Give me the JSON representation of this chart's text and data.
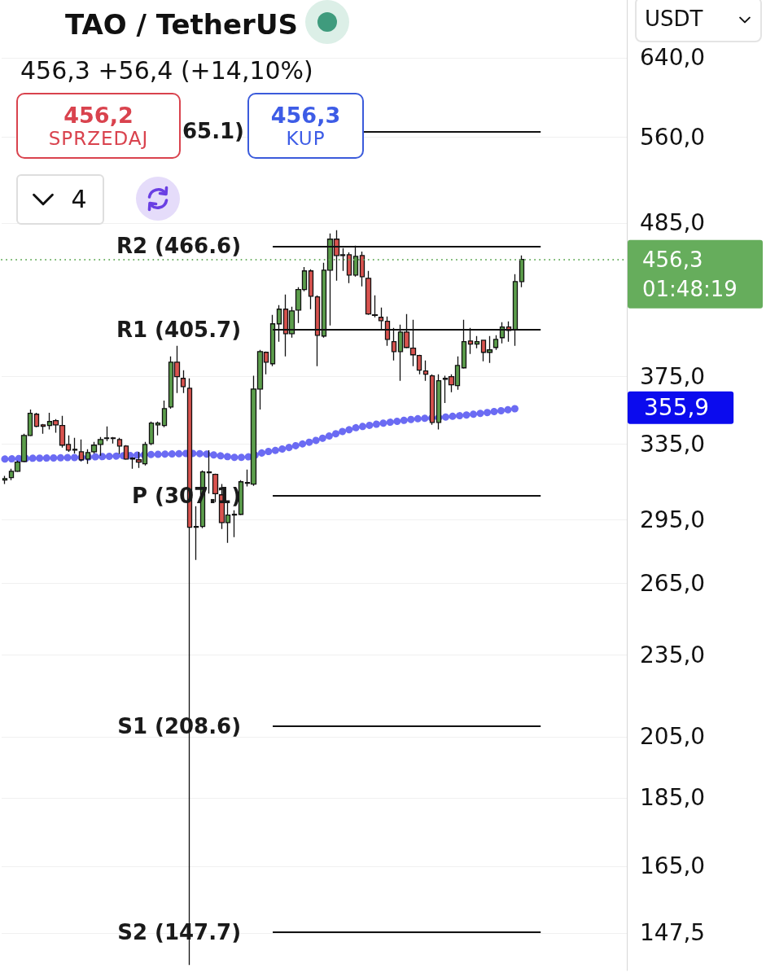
{
  "chart_data": {
    "type": "candlestick",
    "title": "TAO / TetherUS",
    "subtitle": "456,3 +56,4 (+14,10%)",
    "categories": [
      null,
      null,
      null,
      null,
      null,
      null,
      null,
      null,
      null,
      null,
      null,
      null,
      null,
      null,
      null,
      null,
      null,
      null,
      null,
      null,
      null,
      null,
      null,
      null,
      null,
      null,
      null,
      null,
      null,
      null,
      null,
      null,
      null,
      null,
      null,
      null,
      null,
      null,
      null,
      null,
      null,
      null,
      null,
      null,
      null,
      null,
      null,
      null,
      null,
      null,
      null,
      null,
      null,
      null,
      null,
      null,
      null,
      null,
      null,
      null,
      null,
      null,
      null,
      null,
      null,
      null,
      null,
      null,
      null,
      null,
      null,
      null,
      null,
      null,
      null,
      null,
      null,
      null,
      null,
      null,
      null,
      null
    ],
    "ohlc": [
      [
        315.2,
        317.4,
        313.1,
        316.0
      ],
      [
        316.5,
        321.2,
        315.2,
        319.9
      ],
      [
        319.9,
        325.6,
        319.5,
        324.8
      ],
      [
        325.2,
        340.7,
        324.8,
        339.7
      ],
      [
        339.7,
        354.8,
        339.3,
        352.5
      ],
      [
        352.0,
        352.9,
        344.4,
        344.9
      ],
      [
        345.8,
        346.3,
        340.7,
        344.9
      ],
      [
        345.4,
        352.9,
        343.1,
        347.7
      ],
      [
        348.2,
        349.1,
        341.2,
        345.8
      ],
      [
        345.4,
        351.0,
        332.8,
        334.2
      ],
      [
        334.6,
        339.7,
        330.5,
        331.4
      ],
      [
        331.4,
        338.3,
        329.6,
        331.9
      ],
      [
        330.5,
        337.4,
        325.2,
        326.1
      ],
      [
        326.5,
        331.9,
        323.9,
        330.1
      ],
      [
        330.5,
        336.0,
        329.6,
        334.2
      ],
      [
        334.6,
        338.8,
        328.3,
        337.4
      ],
      [
        338.0,
        344.9,
        336.5,
        338.3
      ],
      [
        338.3,
        338.8,
        335.1,
        338.0
      ],
      [
        337.4,
        338.3,
        329.2,
        333.7
      ],
      [
        333.7,
        334.2,
        326.1,
        326.5
      ],
      [
        326.5,
        327.4,
        321.2,
        327.0
      ],
      [
        326.1,
        330.5,
        321.7,
        324.8
      ],
      [
        323.9,
        336.0,
        323.0,
        334.6
      ],
      [
        335.1,
        347.7,
        334.2,
        346.8
      ],
      [
        345.8,
        347.7,
        339.7,
        346.8
      ],
      [
        345.4,
        360.2,
        344.4,
        355.3
      ],
      [
        356.3,
        387.9,
        355.3,
        384.1
      ],
      [
        384.1,
        394.8,
        364.7,
        374.9
      ],
      [
        373.8,
        379.0,
        364.7,
        368.7
      ],
      [
        367.7,
        373.8,
        139.8,
        291.2
      ],
      [
        291.2,
        301.7,
        275.7,
        291.6
      ],
      [
        291.6,
        320.4,
        290.8,
        319.5
      ],
      [
        319.5,
        331.4,
        308.1,
        319.1
      ],
      [
        318.2,
        318.6,
        303.8,
        308.1
      ],
      [
        307.5,
        313.1,
        290.4,
        293.5
      ],
      [
        293.5,
        303.8,
        283.7,
        297.2
      ],
      [
        297.2,
        299.6,
        286.4,
        297.6
      ],
      [
        297.6,
        315.2,
        297.2,
        314.3
      ],
      [
        313.5,
        320.8,
        311.8,
        313.9
      ],
      [
        313.1,
        375.4,
        312.2,
        367.2
      ],
      [
        367.2,
        392.1,
        354.8,
        391.0
      ],
      [
        390.5,
        391.0,
        376.4,
        384.1
      ],
      [
        383.1,
        415.8,
        381.5,
        409.6
      ],
      [
        409.6,
        422.7,
        397.5,
        419.8
      ],
      [
        419.8,
        430.2,
        387.9,
        402.9
      ],
      [
        402.9,
        421.5,
        400.2,
        418.6
      ],
      [
        419.2,
        435.6,
        410.2,
        433.8
      ],
      [
        433.8,
        450.6,
        432.6,
        447.6
      ],
      [
        447.6,
        448.8,
        419.8,
        429.0
      ],
      [
        428.5,
        429.6,
        381.5,
        401.8
      ],
      [
        401.3,
        453.7,
        400.2,
        448.2
      ],
      [
        448.2,
        476.7,
        408.5,
        472.1
      ],
      [
        472.1,
        479.2,
        440.3,
        459.3
      ],
      [
        459.9,
        465.0,
        447.6,
        459.3
      ],
      [
        459.9,
        461.8,
        438.6,
        444.5
      ],
      [
        444.5,
        466.9,
        443.3,
        458.7
      ],
      [
        459.3,
        462.4,
        436.2,
        443.3
      ],
      [
        442.1,
        447.6,
        415.8,
        416.4
      ],
      [
        415.8,
        429.6,
        414.1,
        415.5
      ],
      [
        414.1,
        420.9,
        405.7,
        411.8
      ],
      [
        411.3,
        414.7,
        394.8,
        399.1
      ],
      [
        397.5,
        406.8,
        385.2,
        391.0
      ],
      [
        391.0,
        409.1,
        372.3,
        404.0
      ],
      [
        404.0,
        416.4,
        393.2,
        393.7
      ],
      [
        393.2,
        412.4,
        381.5,
        388.9
      ],
      [
        388.4,
        388.9,
        376.4,
        379.0
      ],
      [
        378.5,
        385.2,
        372.3,
        376.4
      ],
      [
        375.4,
        376.4,
        345.8,
        347.2
      ],
      [
        347.2,
        376.4,
        343.1,
        372.3
      ],
      [
        373.3,
        375.4,
        358.7,
        373.8
      ],
      [
        374.9,
        376.4,
        365.2,
        369.8
      ],
      [
        369.3,
        387.9,
        366.7,
        382.0
      ],
      [
        380.5,
        412.4,
        380.0,
        397.5
      ],
      [
        398.0,
        406.8,
        389.4,
        395.9
      ],
      [
        395.9,
        401.3,
        393.2,
        397.5
      ],
      [
        398.5,
        398.5,
        384.7,
        390.5
      ],
      [
        390.5,
        401.3,
        383.6,
        392.1
      ],
      [
        393.7,
        401.8,
        392.1,
        399.1
      ],
      [
        400.2,
        410.7,
        396.4,
        407.4
      ],
      [
        407.4,
        411.3,
        397.5,
        405.1
      ],
      [
        405.7,
        445.1,
        394.8,
        439.7
      ],
      [
        439.7,
        459.3,
        435.6,
        456.3
      ]
    ],
    "colors": [
      "#5c9e4c",
      "#5c9e4c",
      "#5c9e4c",
      "#5c9e4c",
      "#5c9e4c",
      "#d9534f",
      "#d9534f",
      "#5c9e4c",
      "#d9534f",
      "#d9534f",
      "#d9534f",
      "#5c9e4c",
      "#d9534f",
      "#5c9e4c",
      "#5c9e4c",
      "#5c9e4c",
      "#5c9e4c",
      "#d9534f",
      "#d9534f",
      "#d9534f",
      "#5c9e4c",
      "#d9534f",
      "#5c9e4c",
      "#5c9e4c",
      "#5c9e4c",
      "#5c9e4c",
      "#5c9e4c",
      "#d9534f",
      "#d9534f",
      "#d9534f",
      "#5c9e4c",
      "#5c9e4c",
      "#d9534f",
      "#d9534f",
      "#d9534f",
      "#5c9e4c",
      "#5c9e4c",
      "#5c9e4c",
      "#5c9e4c",
      "#5c9e4c",
      "#5c9e4c",
      "#d9534f",
      "#5c9e4c",
      "#5c9e4c",
      "#d9534f",
      "#5c9e4c",
      "#5c9e4c",
      "#5c9e4c",
      "#d9534f",
      "#d9534f",
      "#5c9e4c",
      "#5c9e4c",
      "#d9534f",
      "#d9534f",
      "#d9534f",
      "#5c9e4c",
      "#d9534f",
      "#d9534f",
      "#d9534f",
      "#d9534f",
      "#d9534f",
      "#d9534f",
      "#5c9e4c",
      "#d9534f",
      "#d9534f",
      "#d9534f",
      "#d9534f",
      "#d9534f",
      "#5c9e4c",
      "#5c9e4c",
      "#d9534f",
      "#5c9e4c",
      "#5c9e4c",
      "#d9534f",
      "#5c9e4c",
      "#d9534f",
      "#5c9e4c",
      "#5c9e4c",
      "#5c9e4c",
      "#d9534f",
      "#5c9e4c",
      "#5c9e4c"
    ],
    "series": [
      {
        "type": "line",
        "color": "#5b5bf2",
        "line_style": "dotted",
        "values": [
          326.5,
          326.6,
          326.7,
          326.8,
          326.9,
          327.0,
          327.0,
          327.1,
          327.1,
          327.2,
          327.3,
          327.3,
          327.4,
          327.6,
          327.7,
          327.8,
          327.9,
          328.1,
          328.2,
          328.4,
          328.5,
          328.7,
          328.8,
          329.0,
          329.1,
          329.2,
          329.3,
          329.4,
          329.5,
          329.6,
          329.6,
          329.4,
          329.1,
          328.7,
          328.2,
          327.8,
          327.4,
          327.4,
          327.6,
          328.4,
          329.6,
          330.5,
          331.0,
          331.7,
          332.4,
          333.3,
          334.3,
          335.2,
          336.1,
          337.1,
          338.3,
          339.6,
          340.8,
          342.0,
          343.0,
          344.1,
          344.8,
          345.4,
          346.0,
          346.6,
          347.1,
          347.6,
          348.1,
          348.6,
          349.1,
          349.4,
          349.6,
          349.8,
          350.0,
          350.3,
          350.7,
          351.0,
          351.4,
          351.8,
          352.3,
          352.7,
          353.2,
          353.7,
          354.2,
          354.7,
          355.3,
          355.9
        ]
      }
    ],
    "ylim": [
      138.5,
      705
    ],
    "yticks": [
      {
        "value": 640,
        "label": "640,0"
      },
      {
        "value": 560,
        "label": "560,0"
      },
      {
        "value": 485,
        "label": "485,0"
      },
      {
        "value": 375,
        "label": "375,0"
      },
      {
        "value": 335,
        "label": "335,0"
      },
      {
        "value": 295,
        "label": "295,0"
      },
      {
        "value": 265,
        "label": "265,0"
      },
      {
        "value": 235,
        "label": "235,0"
      },
      {
        "value": 205,
        "label": "205,0"
      },
      {
        "value": 185,
        "label": "185,0"
      },
      {
        "value": 165,
        "label": "165,0"
      },
      {
        "value": 147.5,
        "label": "147,5"
      }
    ],
    "log": true,
    "grid": "y",
    "tick_labels": "y",
    "ref_lines": [
      {
        "axis": "y",
        "value": 565.1,
        "color": "#111111"
      },
      {
        "axis": "y",
        "value": 466.6,
        "label": "R2 (466.6)",
        "color": "#111111"
      },
      {
        "axis": "y",
        "value": 405.7,
        "label": "R1 (405.7)",
        "color": "#111111"
      },
      {
        "axis": "y",
        "value": 307.1,
        "label": "P (307.1)",
        "color": "#111111"
      },
      {
        "axis": "y",
        "value": 208.6,
        "label": "S1 (208.6)",
        "color": "#111111"
      },
      {
        "axis": "y",
        "value": 147.7,
        "label": "S2 (147.7)",
        "color": "#111111"
      },
      {
        "axis": "y",
        "value": 456.3,
        "label": "456,3 01:48:19",
        "color": "#66ad5c",
        "line_style": "dotted"
      }
    ],
    "annotations": [
      "456,2",
      "SPRZEDAJ",
      "65.1)",
      "456,3",
      "KUP",
      "4",
      "USDT",
      "355,9"
    ]
  }
}
